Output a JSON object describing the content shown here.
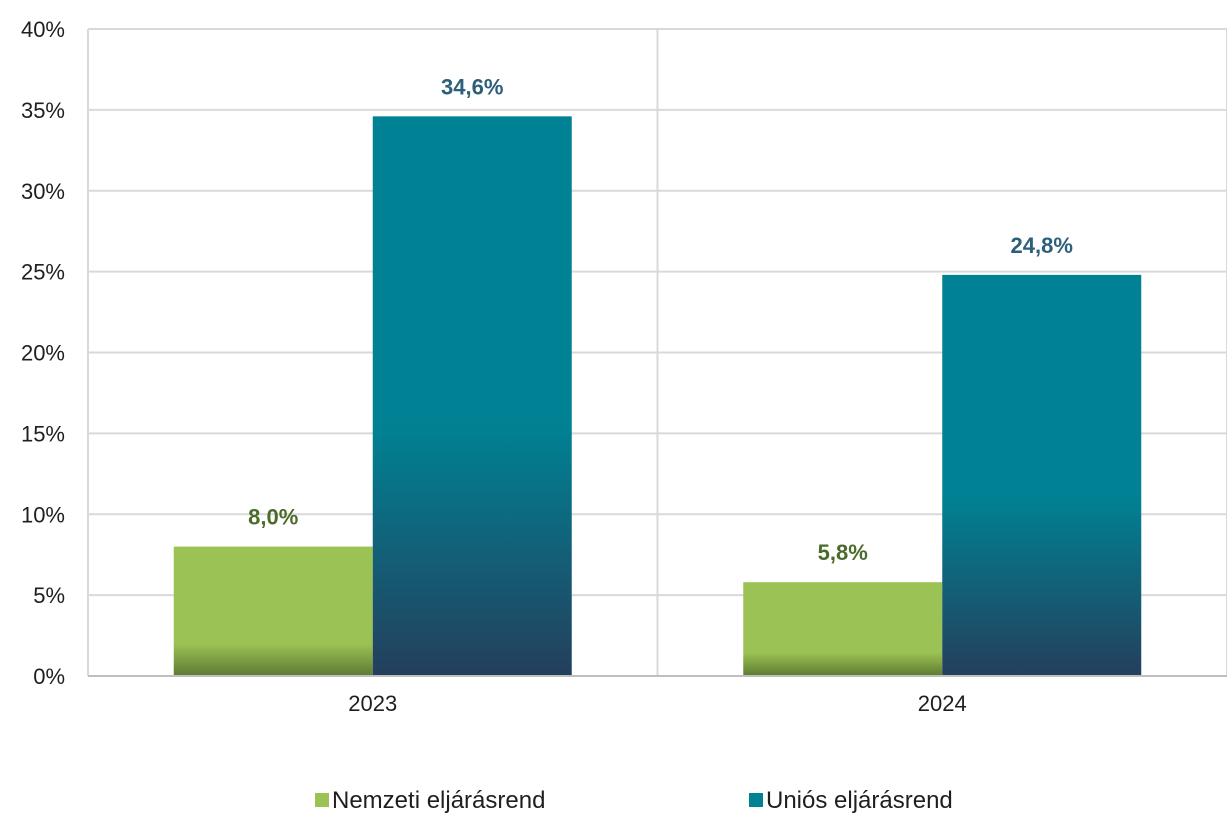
{
  "chart_data": {
    "type": "bar",
    "title": "",
    "xlabel": "",
    "ylabel": "",
    "categories": [
      "2023",
      "2024"
    ],
    "ylim": [
      0,
      40
    ],
    "yticks": [
      0,
      5,
      10,
      15,
      20,
      25,
      30,
      35,
      40
    ],
    "ytick_labels": [
      "0%",
      "5%",
      "10%",
      "15%",
      "20%",
      "25%",
      "30%",
      "35%",
      "40%"
    ],
    "grid": true,
    "legend_position": "bottom",
    "series": [
      {
        "name": "Nemzeti eljárásrend",
        "values": [
          8.0,
          5.8
        ],
        "labels": [
          "8,0%",
          "5,8%"
        ],
        "color": "#9bc254",
        "label_color": "#4a6b2a"
      },
      {
        "name": "Uniós eljárásrend",
        "values": [
          34.6,
          24.8
        ],
        "labels": [
          "34,6%",
          "24,8%"
        ],
        "color": "#008294",
        "label_color": "#2d5f7a"
      }
    ]
  }
}
